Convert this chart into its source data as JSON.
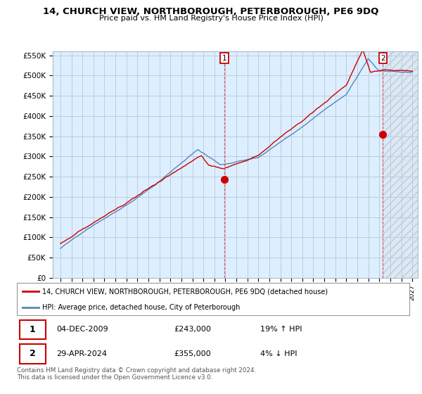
{
  "title": "14, CHURCH VIEW, NORTHBOROUGH, PETERBOROUGH, PE6 9DQ",
  "subtitle": "Price paid vs. HM Land Registry's House Price Index (HPI)",
  "ylim": [
    0,
    560000
  ],
  "yticks": [
    0,
    50000,
    100000,
    150000,
    200000,
    250000,
    300000,
    350000,
    400000,
    450000,
    500000,
    550000
  ],
  "ytick_labels": [
    "£0",
    "£50K",
    "£100K",
    "£150K",
    "£200K",
    "£250K",
    "£300K",
    "£350K",
    "£400K",
    "£450K",
    "£500K",
    "£550K"
  ],
  "sale1_year": 2009.92,
  "sale1_price": 243000,
  "sale2_year": 2024.33,
  "sale2_price": 355000,
  "legend_line1": "14, CHURCH VIEW, NORTHBOROUGH, PETERBOROUGH, PE6 9DQ (detached house)",
  "legend_line2": "HPI: Average price, detached house, City of Peterborough",
  "row1_num": "1",
  "row1_date": "04-DEC-2009",
  "row1_price": "£243,000",
  "row1_hpi": "19% ↑ HPI",
  "row2_num": "2",
  "row2_date": "29-APR-2024",
  "row2_price": "£355,000",
  "row2_hpi": "4% ↓ HPI",
  "footer": "Contains HM Land Registry data © Crown copyright and database right 2024.\nThis data is licensed under the Open Government Licence v3.0.",
  "line_red": "#cc0000",
  "line_blue": "#5588bb",
  "plot_bg": "#ddeeff",
  "hatch_bg": "#e8eef5",
  "grid_color": "#bbccdd",
  "vline_color": "#dd4444"
}
